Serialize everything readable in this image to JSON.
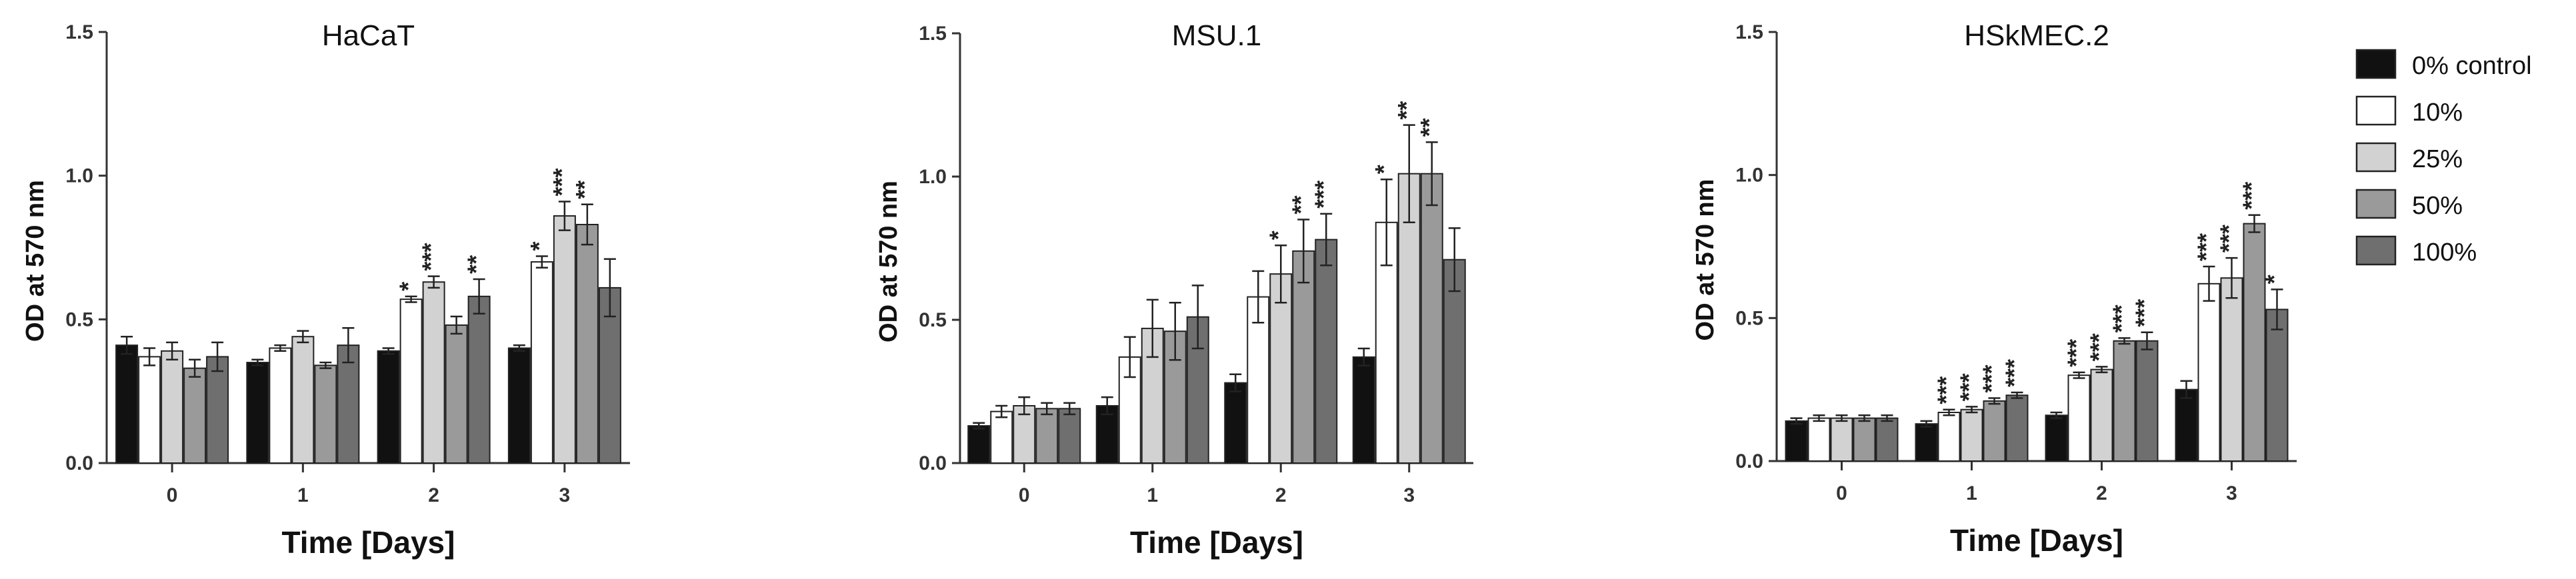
{
  "colors": {
    "0% control": "#111111",
    "10%": "#ffffff",
    "25%": "#d2d2d2",
    "50%": "#9a9a9a",
    "100%": "#6f6f6f",
    "axis": "#333333"
  },
  "legend": {
    "placement": "right",
    "items": [
      "0% control",
      "10%",
      "25%",
      "50%",
      "100%"
    ]
  },
  "chart_data": [
    {
      "type": "bar",
      "title": "HaCaT",
      "xlabel": "Time [Days]",
      "ylabel": "OD at 570 nm",
      "categories": [
        "0",
        "1",
        "2",
        "3"
      ],
      "ylim": [
        0,
        1.5
      ],
      "yticks": [
        "0.0",
        "0.5",
        "1.0",
        "1.5"
      ],
      "series": [
        {
          "name": "0% control",
          "values": [
            0.41,
            0.35,
            0.39,
            0.4
          ],
          "errors": [
            0.03,
            0.01,
            0.01,
            0.01
          ],
          "sig": [
            "",
            "",
            "",
            ""
          ]
        },
        {
          "name": "10%",
          "values": [
            0.37,
            0.4,
            0.57,
            0.7
          ],
          "errors": [
            0.03,
            0.01,
            0.01,
            0.02
          ],
          "sig": [
            "",
            "",
            "*",
            "*"
          ]
        },
        {
          "name": "25%",
          "values": [
            0.39,
            0.44,
            0.63,
            0.86
          ],
          "errors": [
            0.03,
            0.02,
            0.02,
            0.05
          ],
          "sig": [
            "",
            "",
            "***",
            "***"
          ]
        },
        {
          "name": "50%",
          "values": [
            0.33,
            0.34,
            0.48,
            0.83
          ],
          "errors": [
            0.03,
            0.01,
            0.03,
            0.07
          ],
          "sig": [
            "",
            "",
            "",
            "**"
          ]
        },
        {
          "name": "100%",
          "values": [
            0.37,
            0.41,
            0.58,
            0.61
          ],
          "errors": [
            0.05,
            0.06,
            0.06,
            0.1
          ],
          "sig": [
            "",
            "",
            "**",
            ""
          ]
        }
      ]
    },
    {
      "type": "bar",
      "title": "MSU.1",
      "xlabel": "Time [Days]",
      "ylabel": "OD at 570 nm",
      "categories": [
        "0",
        "1",
        "2",
        "3"
      ],
      "ylim": [
        0,
        1.5
      ],
      "yticks": [
        "0.0",
        "0.5",
        "1.0",
        "1.5"
      ],
      "series": [
        {
          "name": "0% control",
          "values": [
            0.13,
            0.2,
            0.28,
            0.37
          ],
          "errors": [
            0.01,
            0.03,
            0.03,
            0.03
          ],
          "sig": [
            "",
            "",
            "",
            ""
          ]
        },
        {
          "name": "10%",
          "values": [
            0.18,
            0.37,
            0.58,
            0.84
          ],
          "errors": [
            0.02,
            0.07,
            0.09,
            0.15
          ],
          "sig": [
            "",
            "",
            "",
            "*"
          ]
        },
        {
          "name": "25%",
          "values": [
            0.2,
            0.47,
            0.66,
            1.01
          ],
          "errors": [
            0.03,
            0.1,
            0.1,
            0.17
          ],
          "sig": [
            "",
            "",
            "*",
            "**"
          ]
        },
        {
          "name": "50%",
          "values": [
            0.19,
            0.46,
            0.74,
            1.01
          ],
          "errors": [
            0.02,
            0.1,
            0.11,
            0.11
          ],
          "sig": [
            "",
            "",
            "**",
            "**"
          ]
        },
        {
          "name": "100%",
          "values": [
            0.19,
            0.51,
            0.78,
            0.71
          ],
          "errors": [
            0.02,
            0.11,
            0.09,
            0.11
          ],
          "sig": [
            "",
            "",
            "***",
            ""
          ]
        }
      ]
    },
    {
      "type": "bar",
      "title": "HSkMEC.2",
      "xlabel": "Time [Days]",
      "ylabel": "OD at 570 nm",
      "categories": [
        "0",
        "1",
        "2",
        "3"
      ],
      "ylim": [
        0,
        1.5
      ],
      "yticks": [
        "0.0",
        "0.5",
        "1.0",
        "1.5"
      ],
      "series": [
        {
          "name": "0% control",
          "values": [
            0.14,
            0.13,
            0.16,
            0.25
          ],
          "errors": [
            0.01,
            0.01,
            0.01,
            0.03
          ],
          "sig": [
            "",
            "",
            "",
            ""
          ]
        },
        {
          "name": "10%",
          "values": [
            0.15,
            0.17,
            0.3,
            0.62
          ],
          "errors": [
            0.01,
            0.01,
            0.01,
            0.06
          ],
          "sig": [
            "",
            "***",
            "***",
            "***"
          ]
        },
        {
          "name": "25%",
          "values": [
            0.15,
            0.18,
            0.32,
            0.64
          ],
          "errors": [
            0.01,
            0.01,
            0.01,
            0.07
          ],
          "sig": [
            "",
            "***",
            "***",
            "***"
          ]
        },
        {
          "name": "50%",
          "values": [
            0.15,
            0.21,
            0.42,
            0.83
          ],
          "errors": [
            0.01,
            0.01,
            0.01,
            0.03
          ],
          "sig": [
            "",
            "***",
            "***",
            "***"
          ]
        },
        {
          "name": "100%",
          "values": [
            0.15,
            0.23,
            0.42,
            0.53
          ],
          "errors": [
            0.01,
            0.01,
            0.03,
            0.07
          ],
          "sig": [
            "",
            "***",
            "***",
            "*"
          ]
        }
      ]
    }
  ]
}
